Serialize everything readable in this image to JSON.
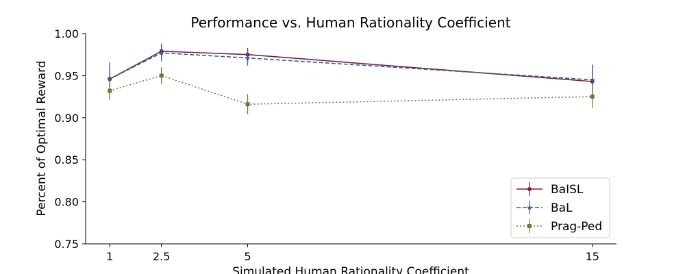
{
  "chart_data": {
    "type": "line",
    "title": "Performance vs. Human Rationality Coefficient",
    "xlabel": "Simulated Human Rationality Coefficient",
    "ylabel": "Percent of Optimal Reward",
    "x": [
      1,
      2.5,
      5,
      15
    ],
    "xticks": [
      "1",
      "2.5",
      "5",
      "15"
    ],
    "xlim": [
      0.3,
      15.7
    ],
    "ylim": [
      0.75,
      1.0
    ],
    "yticks": [
      "0.75",
      "0.80",
      "0.85",
      "0.90",
      "0.95",
      "1.00"
    ],
    "ytick_values": [
      0.75,
      0.8,
      0.85,
      0.9,
      0.95,
      1.0
    ],
    "grid": false,
    "legend_position": "bottom-right",
    "series": [
      {
        "name": "BaISL",
        "values": [
          0.946,
          0.979,
          0.975,
          0.943
        ],
        "errors": [
          0.012,
          0.009,
          0.008,
          0.02
        ],
        "color": "#7a1f35",
        "line_style": "solid",
        "marker": "circle"
      },
      {
        "name": "BaL",
        "values": [
          0.946,
          0.977,
          0.971,
          0.945
        ],
        "errors": [
          0.02,
          0.01,
          0.009,
          0.018
        ],
        "color": "#2d5f9e",
        "line_style": "dashed",
        "marker": "star"
      },
      {
        "name": "Prag-Ped",
        "values": [
          0.932,
          0.95,
          0.916,
          0.925
        ],
        "errors": [
          0.011,
          0.01,
          0.012,
          0.013
        ],
        "color": "#6b7a3d",
        "line_style": "dotted",
        "marker": "square"
      }
    ]
  }
}
